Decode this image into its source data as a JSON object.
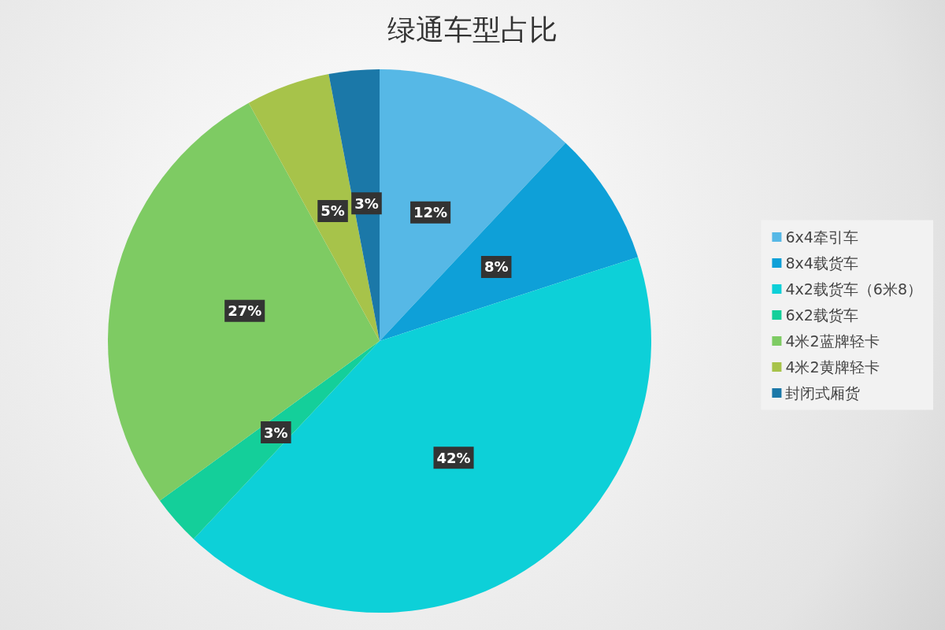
{
  "chart_data": {
    "type": "pie",
    "title": "绿通车型占比",
    "categories": [
      "6x4牵引车",
      "8x4载货车",
      "4x2载货车（6米8）",
      "6x2载货车",
      "4米2蓝牌轻卡",
      "4米2黄牌轻卡",
      "封闭式厢货"
    ],
    "values": [
      12,
      8,
      42,
      3,
      27,
      5,
      3
    ],
    "colors": [
      "#56b8e6",
      "#0ea0d8",
      "#0dd0d8",
      "#14cf9a",
      "#7ecb63",
      "#a7c34a",
      "#1b78a8"
    ],
    "value_labels": [
      "12%",
      "8%",
      "42%",
      "3%",
      "27%",
      "5%",
      "3%"
    ],
    "legend": "right"
  }
}
